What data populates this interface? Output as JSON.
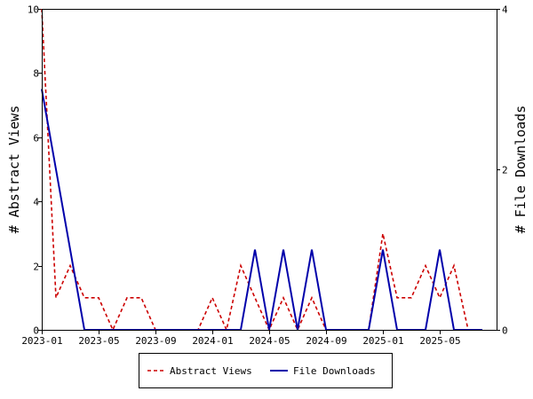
{
  "chart_data": {
    "type": "line",
    "xlabel": "",
    "ylabel_left": "# Abstract Views",
    "ylabel_right": "# File Downloads",
    "x_tick_labels": [
      "2023-01",
      "2023-05",
      "2023-09",
      "2024-01",
      "2024-05",
      "2024-09",
      "2025-01",
      "2025-05"
    ],
    "y_left_ticks": [
      "0",
      "2",
      "4",
      "6",
      "8",
      "10"
    ],
    "y_right_ticks": [
      "0",
      "2",
      "4"
    ],
    "ylim_left": [
      0,
      10
    ],
    "ylim_right": [
      0,
      4
    ],
    "x": [
      "2023-01",
      "2023-02",
      "2023-03",
      "2023-04",
      "2023-05",
      "2023-06",
      "2023-07",
      "2023-08",
      "2023-09",
      "2023-10",
      "2023-11",
      "2023-12",
      "2024-01",
      "2024-02",
      "2024-03",
      "2024-04",
      "2024-05",
      "2024-06",
      "2024-07",
      "2024-08",
      "2024-09",
      "2024-10",
      "2024-11",
      "2024-12",
      "2025-01",
      "2025-02",
      "2025-03",
      "2025-04",
      "2025-05",
      "2025-06",
      "2025-07",
      "2025-08"
    ],
    "series": [
      {
        "name": "Abstract Views",
        "axis": "left",
        "color": "#cc0000",
        "style": "dashed",
        "values": [
          10,
          1,
          2,
          1,
          1,
          0,
          1,
          1,
          0,
          0,
          0,
          0,
          1,
          0,
          2,
          1,
          0,
          1,
          0,
          1,
          0,
          0,
          0,
          0,
          3,
          1,
          1,
          2,
          1,
          2,
          0,
          0
        ]
      },
      {
        "name": "File Downloads",
        "axis": "right",
        "color": "#0000aa",
        "style": "solid",
        "values": [
          3,
          2,
          1,
          0,
          0,
          0,
          0,
          0,
          0,
          0,
          0,
          0,
          0,
          0,
          0,
          1,
          0,
          1,
          0,
          1,
          0,
          0,
          0,
          0,
          1,
          0,
          0,
          0,
          1,
          0,
          0,
          0
        ]
      }
    ],
    "grid": false,
    "legend_position": "bottom"
  }
}
